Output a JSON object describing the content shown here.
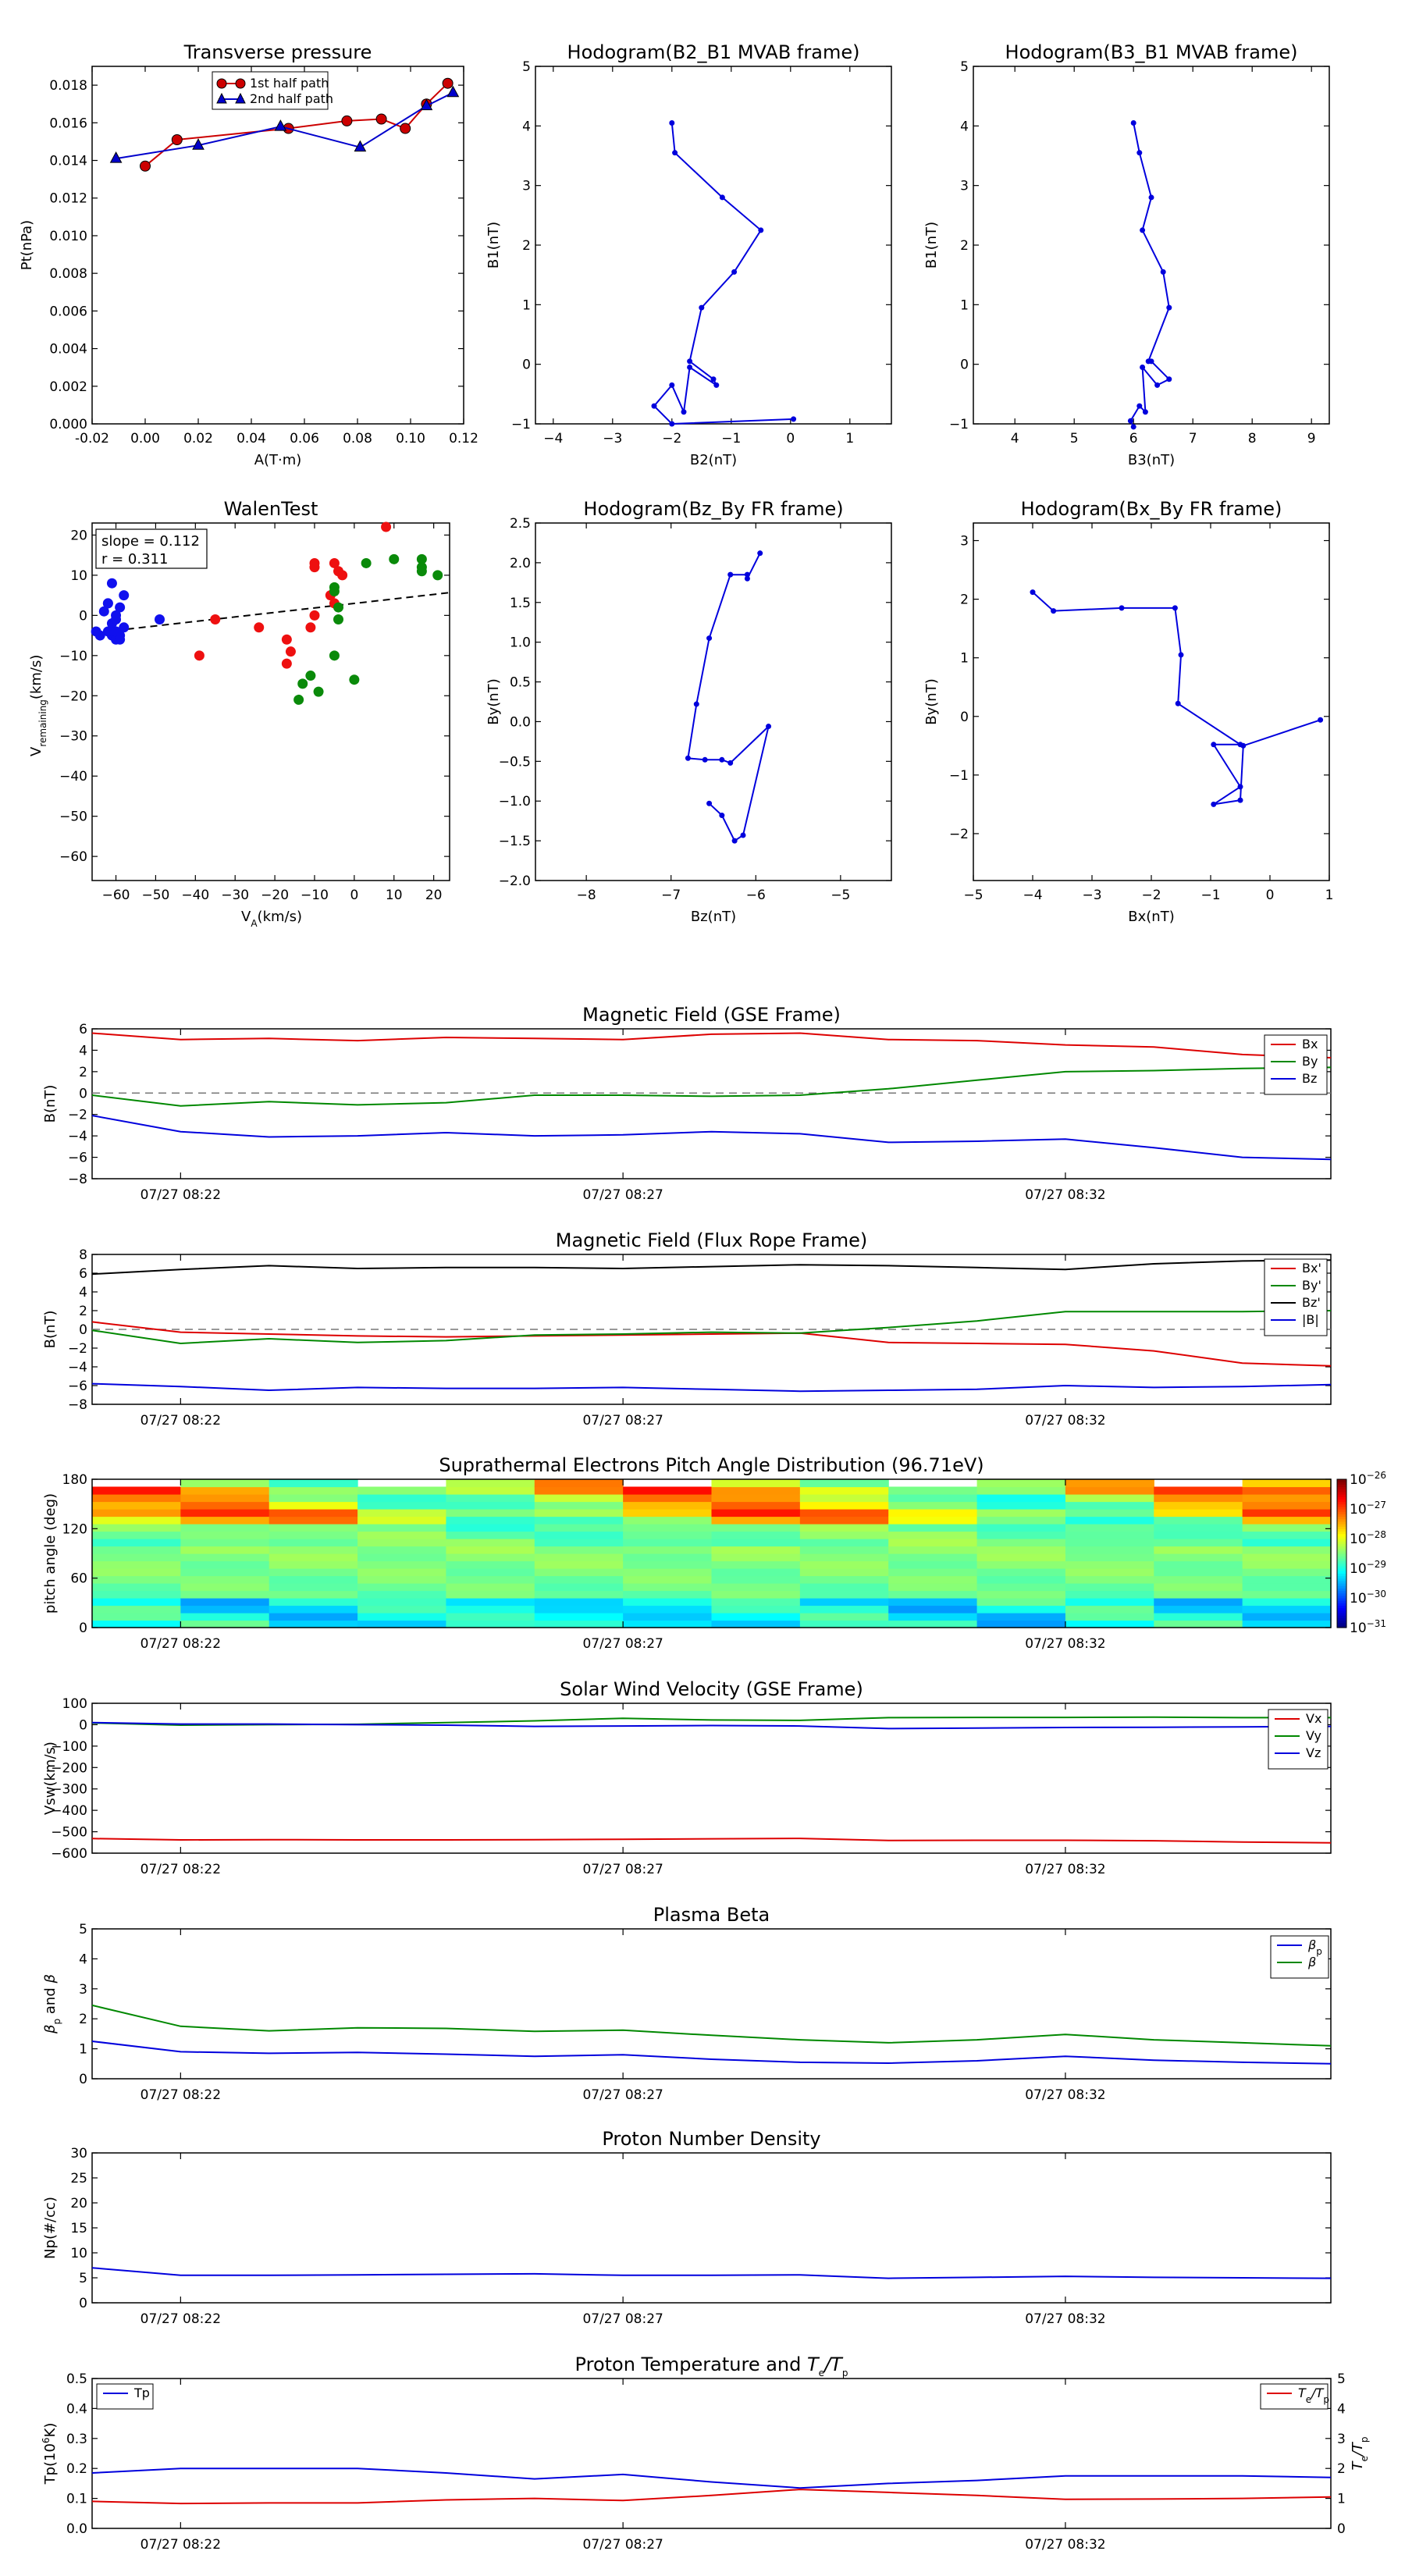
{
  "chart_data": [
    {
      "id": "tp",
      "type": "line",
      "title": "Transverse pressure",
      "xlabel": "A(T·m)",
      "ylabel": "Pt(nPa)",
      "xlim": [
        -0.02,
        0.12
      ],
      "ylim": [
        0.0,
        0.019
      ],
      "xticks": [
        "-0.02",
        "0.00",
        "0.02",
        "0.04",
        "0.06",
        "0.08",
        "0.10",
        "0.12"
      ],
      "yticks": [
        "0.000",
        "0.002",
        "0.004",
        "0.006",
        "0.008",
        "0.010",
        "0.012",
        "0.014",
        "0.016",
        "0.018"
      ],
      "legend_loc": "top-center",
      "series": [
        {
          "name": "1st half path",
          "color": "#cc0000",
          "marker": "circle",
          "x": [
            0.0,
            0.012,
            0.054,
            0.076,
            0.089,
            0.098,
            0.106,
            0.114
          ],
          "y": [
            0.0137,
            0.0151,
            0.0157,
            0.0161,
            0.0162,
            0.0157,
            0.017,
            0.0181
          ]
        },
        {
          "name": "2nd half path",
          "color": "#0000cc",
          "marker": "triangle",
          "x": [
            -0.011,
            0.02,
            0.051,
            0.081,
            0.106,
            0.116
          ],
          "y": [
            0.0141,
            0.0148,
            0.0158,
            0.0147,
            0.0169,
            0.0176
          ]
        }
      ]
    },
    {
      "id": "h1",
      "type": "line",
      "title": "Hodogram(B2_B1 MVAB frame)",
      "xlabel": "B2(nT)",
      "ylabel": "B1(nT)",
      "xlim": [
        -4.3,
        1.7
      ],
      "ylim": [
        -1,
        5
      ],
      "xticks": [
        "−4",
        "−3",
        "−2",
        "−1",
        "0",
        "1"
      ],
      "yticks": [
        "−1",
        "0",
        "1",
        "2",
        "3",
        "4",
        "5"
      ],
      "x": [
        -2.0,
        -1.95,
        -1.15,
        -0.5,
        -0.95,
        -1.5,
        -1.7,
        -1.3,
        -1.25,
        -1.7,
        -1.8,
        -2.0,
        -2.3,
        -2.0,
        0.05
      ],
      "y": [
        4.05,
        3.55,
        2.8,
        2.25,
        1.55,
        0.95,
        0.05,
        -0.25,
        -0.35,
        -0.05,
        -0.8,
        -0.35,
        -0.7,
        -1.0,
        -0.92
      ]
    },
    {
      "id": "h2",
      "type": "line",
      "title": "Hodogram(B3_B1 MVAB frame)",
      "xlabel": "B3(nT)",
      "ylabel": "B1(nT)",
      "xlim": [
        3.3,
        9.3
      ],
      "ylim": [
        -1,
        5
      ],
      "xticks": [
        "4",
        "5",
        "6",
        "7",
        "8",
        "9"
      ],
      "yticks": [
        "−1",
        "0",
        "1",
        "2",
        "3",
        "4",
        "5"
      ],
      "x": [
        6.0,
        6.1,
        6.3,
        6.15,
        6.5,
        6.6,
        6.25,
        6.3,
        6.6,
        6.4,
        6.15,
        6.2,
        6.1,
        5.95,
        6.0
      ],
      "y": [
        4.05,
        3.55,
        2.8,
        2.25,
        1.55,
        0.95,
        0.05,
        0.05,
        -0.25,
        -0.35,
        -0.05,
        -0.8,
        -0.7,
        -0.95,
        -1.05
      ]
    },
    {
      "id": "walen",
      "type": "scatter",
      "title": "WalenTest",
      "xlabel": "V",
      "xlabel_sub": "A",
      "xlabel_unit": "(km/s)",
      "ylabel": "V",
      "ylabel_sub": "remaining",
      "ylabel_unit": "(km/s)",
      "xlim": [
        -66,
        24
      ],
      "ylim": [
        -66,
        23
      ],
      "xticks": [
        "−60",
        "−50",
        "−40",
        "−30",
        "−20",
        "−10",
        "0",
        "10",
        "20"
      ],
      "yticks": [
        "−60",
        "−50",
        "−40",
        "−30",
        "−20",
        "−10",
        "0",
        "10",
        "20"
      ],
      "annotation": [
        "slope = 0.112",
        "r = 0.311"
      ],
      "fit_line": {
        "slope": 0.112,
        "intercept": 2.98
      },
      "series": [
        {
          "color": "#1010ee",
          "x": [
            -63,
            -60,
            -62,
            -59,
            -61,
            -60,
            -58,
            -59,
            -61,
            -60,
            -64,
            -62,
            -60,
            -59,
            -61,
            -58,
            -62,
            -65,
            -60,
            -49
          ],
          "y": [
            1,
            0,
            3,
            2,
            -2,
            -4,
            -3,
            -5,
            -5,
            -6,
            -5,
            -4,
            -4,
            -6,
            8,
            5,
            3,
            -4,
            -1,
            -1
          ]
        },
        {
          "color": "#ee1010",
          "x": [
            -39,
            -35,
            -24,
            -17,
            -16,
            -17,
            -11,
            -10,
            -10,
            -10,
            -5,
            -4,
            -5,
            -3,
            -6,
            8
          ],
          "y": [
            -10,
            -1,
            -3,
            -6,
            -9,
            -12,
            -3,
            0,
            12,
            13,
            13,
            11,
            3,
            10,
            5,
            23
          ]
        },
        {
          "color": "#0a8a0a",
          "x": [
            -14,
            -13,
            -11,
            -9,
            -5,
            -4,
            -4,
            -5,
            -5,
            0,
            3,
            10,
            17,
            17,
            17,
            21
          ],
          "y": [
            -21,
            -17,
            -15,
            -19,
            -10,
            -1,
            2,
            7,
            6,
            -16,
            13,
            14,
            14,
            12,
            11,
            10
          ]
        }
      ]
    },
    {
      "id": "h3",
      "type": "line",
      "title": "Hodogram(Bz_By FR frame)",
      "xlabel": "Bz(nT)",
      "ylabel": "By(nT)",
      "xlim": [
        -8.6,
        -4.4
      ],
      "ylim": [
        -2.0,
        2.5
      ],
      "xticks": [
        "−8",
        "−7",
        "−6",
        "−5"
      ],
      "yticks": [
        "−2.0",
        "−1.5",
        "−1.0",
        "−0.5",
        "0.0",
        "0.5",
        "1.0",
        "1.5",
        "2.0",
        "2.5"
      ],
      "x": [
        -5.95,
        -6.1,
        -6.1,
        -6.3,
        -6.55,
        -6.7,
        -6.8,
        -6.6,
        -6.4,
        -6.3,
        -5.85,
        -6.15,
        -6.25,
        -6.4,
        -6.55
      ],
      "y": [
        2.12,
        1.8,
        1.85,
        1.85,
        1.05,
        0.22,
        -0.46,
        -0.48,
        -0.48,
        -0.52,
        -0.06,
        -1.43,
        -1.5,
        -1.18,
        -1.03
      ]
    },
    {
      "id": "h4",
      "type": "line",
      "title": "Hodogram(Bx_By FR frame)",
      "xlabel": "Bx(nT)",
      "ylabel": "By(nT)",
      "xlim": [
        -5,
        1
      ],
      "ylim": [
        -2.8,
        3.3
      ],
      "xticks": [
        "−5",
        "−4",
        "−3",
        "−2",
        "−1",
        "0",
        "1"
      ],
      "yticks": [
        "−2",
        "−1",
        "0",
        "1",
        "2",
        "3"
      ],
      "x": [
        -4.0,
        -3.65,
        -2.5,
        -1.6,
        -1.5,
        -1.55,
        -0.5,
        -0.95,
        -0.5,
        -0.95,
        -0.5,
        -0.45,
        0.85
      ],
      "y": [
        2.12,
        1.8,
        1.85,
        1.85,
        1.05,
        0.22,
        -0.48,
        -0.48,
        -1.2,
        -1.5,
        -1.43,
        -0.5,
        -0.06
      ]
    },
    {
      "id": "mag_gse",
      "type": "line",
      "title": "Magnetic Field (GSE Frame)",
      "ylabel": "B(nT)",
      "ylim": [
        -8,
        6
      ],
      "yticks": [
        "−8",
        "−6",
        "−4",
        "−2",
        "0",
        "2",
        "4",
        "6"
      ],
      "x_points": 15,
      "xtick_pos": [
        1,
        6,
        11
      ],
      "xticks": [
        "07/27 08:22",
        "07/27 08:27",
        "07/27 08:32"
      ],
      "zero_line": true,
      "legend_loc": "right",
      "series": [
        {
          "name": "Bx",
          "color": "#dd0000",
          "values": [
            5.6,
            5.0,
            5.1,
            4.9,
            5.2,
            5.1,
            5.0,
            5.5,
            5.6,
            5.0,
            4.9,
            4.5,
            4.3,
            3.6,
            3.3
          ]
        },
        {
          "name": "By",
          "color": "#008800",
          "values": [
            -0.2,
            -1.2,
            -0.8,
            -1.1,
            -0.9,
            -0.2,
            -0.2,
            -0.3,
            -0.2,
            0.4,
            1.2,
            2.0,
            2.1,
            2.3,
            2.4
          ]
        },
        {
          "name": "Bz",
          "color": "#0000dd",
          "values": [
            -2.1,
            -3.6,
            -4.1,
            -4.0,
            -3.7,
            -4.0,
            -3.9,
            -3.6,
            -3.8,
            -4.6,
            -4.5,
            -4.3,
            -5.1,
            -6.0,
            -6.2
          ]
        }
      ]
    },
    {
      "id": "mag_fr",
      "type": "line",
      "title": "Magnetic Field (Flux Rope Frame)",
      "ylabel": "B(nT)",
      "ylim": [
        -8,
        8
      ],
      "yticks": [
        "−8",
        "−6",
        "−4",
        "−2",
        "0",
        "2",
        "4",
        "6",
        "8"
      ],
      "x_points": 15,
      "xtick_pos": [
        1,
        6,
        11
      ],
      "xticks": [
        "07/27 08:22",
        "07/27 08:27",
        "07/27 08:32"
      ],
      "zero_line": true,
      "legend_loc": "right",
      "series": [
        {
          "name": "Bx'",
          "color": "#dd0000",
          "values": [
            0.8,
            -0.3,
            -0.5,
            -0.7,
            -0.8,
            -0.7,
            -0.6,
            -0.5,
            -0.4,
            -1.4,
            -1.5,
            -1.6,
            -2.3,
            -3.6,
            -3.9
          ]
        },
        {
          "name": "By'",
          "color": "#008800",
          "values": [
            -0.1,
            -1.5,
            -1.0,
            -1.4,
            -1.2,
            -0.6,
            -0.5,
            -0.3,
            -0.4,
            0.2,
            0.9,
            1.9,
            1.9,
            1.9,
            2.0
          ]
        },
        {
          "name": "Bz'",
          "color": "#000000",
          "values": [
            5.9,
            6.4,
            6.8,
            6.5,
            6.6,
            6.6,
            6.5,
            6.7,
            6.9,
            6.8,
            6.6,
            6.4,
            7.0,
            7.3,
            7.4
          ]
        },
        {
          "name": "|B|",
          "color": "#0000dd",
          "values": [
            -5.8,
            -6.1,
            -6.5,
            -6.2,
            -6.3,
            -6.3,
            -6.2,
            -6.4,
            -6.6,
            -6.5,
            -6.4,
            -6.0,
            -6.2,
            -6.1,
            -5.9
          ]
        }
      ]
    },
    {
      "id": "pad",
      "type": "heatmap",
      "title": "Suprathermal Electrons Pitch Angle Distribution (96.71eV)",
      "ylabel": "pitch angle (deg)",
      "ylim": [
        0,
        180
      ],
      "yticks": [
        "0",
        "60",
        "120",
        "180"
      ],
      "x_points": 15,
      "xtick_pos": [
        1,
        6,
        11
      ],
      "xticks": [
        "07/27 08:22",
        "07/27 08:27",
        "07/27 08:32"
      ],
      "colorbar_ticks": [
        "10",
        "10",
        "10",
        "10",
        "10",
        "10"
      ],
      "colorbar_exps": [
        "−31",
        "−30",
        "−29",
        "−28",
        "−27",
        "−26"
      ],
      "colorbar_colors": [
        "#00007f",
        "#0000ff",
        "#007fff",
        "#00ffff",
        "#7fff7f",
        "#ffff00",
        "#ff7f00",
        "#ff0000",
        "#7f0000"
      ]
    },
    {
      "id": "vsw",
      "type": "line",
      "title": "Solar Wind Velocity (GSE Frame)",
      "ylabel": "Vsw(km/s)",
      "ylim": [
        -600,
        100
      ],
      "yticks": [
        "−600",
        "−500",
        "−400",
        "−300",
        "−200",
        "−100",
        "0",
        "100"
      ],
      "x_points": 15,
      "xtick_pos": [
        1,
        6,
        11
      ],
      "xticks": [
        "07/27 08:22",
        "07/27 08:27",
        "07/27 08:32"
      ],
      "legend_loc": "right",
      "series": [
        {
          "name": "Vx",
          "color": "#dd0000",
          "values": [
            -532,
            -538,
            -537,
            -538,
            -538,
            -537,
            -535,
            -533,
            -531,
            -541,
            -540,
            -540,
            -542,
            -548,
            -552
          ]
        },
        {
          "name": "Vy",
          "color": "#008800",
          "values": [
            8,
            -2,
            0,
            2,
            10,
            18,
            30,
            22,
            20,
            33,
            34,
            34,
            35,
            33,
            33
          ]
        },
        {
          "name": "Vz",
          "color": "#0000dd",
          "values": [
            10,
            3,
            3,
            0,
            -2,
            -8,
            -6,
            -4,
            -6,
            -18,
            -16,
            -13,
            -12,
            -10,
            -8
          ]
        }
      ]
    },
    {
      "id": "beta",
      "type": "line",
      "title": "Plasma Beta",
      "ylabel": "β_p and β",
      "ylim": [
        0,
        5
      ],
      "yticks": [
        "0",
        "1",
        "2",
        "3",
        "4",
        "5"
      ],
      "x_points": 15,
      "xtick_pos": [
        1,
        6,
        11
      ],
      "xticks": [
        "07/27 08:22",
        "07/27 08:27",
        "07/27 08:32"
      ],
      "legend_loc": "right",
      "series": [
        {
          "name": "β_p",
          "color": "#0000dd",
          "values": [
            1.25,
            0.9,
            0.85,
            0.88,
            0.82,
            0.75,
            0.8,
            0.65,
            0.55,
            0.52,
            0.6,
            0.75,
            0.62,
            0.55,
            0.5
          ]
        },
        {
          "name": "β",
          "color": "#008800",
          "values": [
            2.45,
            1.75,
            1.6,
            1.7,
            1.68,
            1.58,
            1.62,
            1.45,
            1.3,
            1.2,
            1.3,
            1.48,
            1.3,
            1.2,
            1.1
          ]
        }
      ]
    },
    {
      "id": "np",
      "type": "line",
      "title": "Proton Number Density",
      "ylabel": "Np(#/cc)",
      "ylim": [
        0,
        30
      ],
      "yticks": [
        "0",
        "5",
        "10",
        "15",
        "20",
        "25",
        "30"
      ],
      "x_points": 15,
      "xtick_pos": [
        1,
        6,
        11
      ],
      "xticks": [
        "07/27 08:22",
        "07/27 08:27",
        "07/27 08:32"
      ],
      "series": [
        {
          "name": "",
          "color": "#0000dd",
          "values": [
            7.0,
            5.5,
            5.5,
            5.6,
            5.7,
            5.8,
            5.5,
            5.5,
            5.6,
            4.9,
            5.1,
            5.3,
            5.1,
            5.0,
            4.9
          ]
        }
      ]
    },
    {
      "id": "temp",
      "type": "line",
      "title": "Proton Temperature and T_e/T_p",
      "ylabel": "Tp(10^6K)",
      "ylabel2": "T_e/T_p",
      "ylim": [
        0,
        0.5
      ],
      "ylim2": [
        0,
        5
      ],
      "yticks": [
        "0.0",
        "0.1",
        "0.2",
        "0.3",
        "0.4",
        "0.5"
      ],
      "yticks2": [
        "0",
        "1",
        "2",
        "3",
        "4",
        "5"
      ],
      "x_points": 15,
      "xtick_pos": [
        1,
        6,
        11
      ],
      "xticks": [
        "07/27 08:22",
        "07/27 08:27",
        "07/27 08:32"
      ],
      "series": [
        {
          "name": "Tp",
          "color": "#0000dd",
          "axis": "left",
          "values": [
            0.185,
            0.2,
            0.2,
            0.2,
            0.185,
            0.165,
            0.18,
            0.155,
            0.135,
            0.15,
            0.16,
            0.175,
            0.175,
            0.175,
            0.17
          ]
        },
        {
          "name": "T_e/T_p",
          "color": "#dd0000",
          "axis": "right",
          "values": [
            0.9,
            0.83,
            0.85,
            0.85,
            0.95,
            1.0,
            0.93,
            1.1,
            1.3,
            1.2,
            1.1,
            0.97,
            0.98,
            1.0,
            1.05
          ]
        }
      ]
    }
  ]
}
